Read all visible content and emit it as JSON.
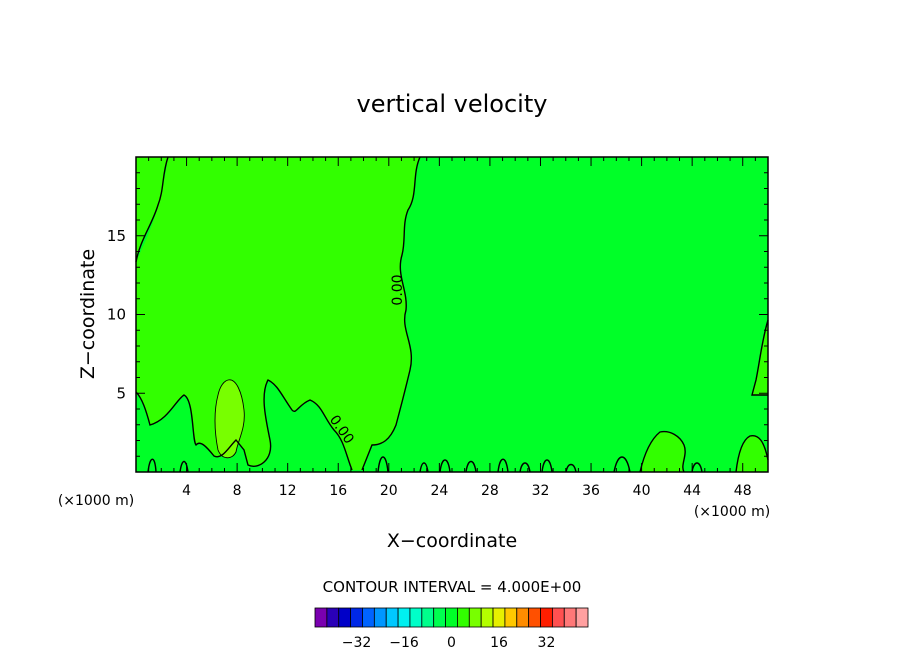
{
  "chart_data": {
    "type": "contour",
    "title": "vertical velocity",
    "xlabel": "X−coordinate",
    "ylabel": "Z−coordinate",
    "x_unit": "(×1000 m)",
    "z_unit": "(×1000 m)",
    "xlim": [
      0,
      50
    ],
    "ylim": [
      0,
      20
    ],
    "x_ticks": [
      "4",
      "8",
      "12",
      "16",
      "20",
      "24",
      "28",
      "32",
      "36",
      "40",
      "44",
      "48"
    ],
    "y_ticks": [
      "5",
      "10",
      "15"
    ],
    "contour_labels": [
      "0.00",
      "0.00"
    ],
    "contour_interval_text": "CONTOUR INTERVAL = 4.000E+00",
    "colorbar_ticks": [
      "−32",
      "−16",
      "0",
      "16",
      "32"
    ],
    "colorbar_colors": [
      "#7a00b0",
      "#2a00b8",
      "#0000c8",
      "#0028e6",
      "#0064ff",
      "#0096ff",
      "#00c8ff",
      "#00f0f0",
      "#00ffc8",
      "#00ff8c",
      "#00ff50",
      "#00ff28",
      "#32ff00",
      "#78ff00",
      "#b4ff00",
      "#e6f000",
      "#ffc800",
      "#ff8c00",
      "#ff5000",
      "#ff1e00",
      "#ff5050",
      "#ff7878",
      "#ffa0a0"
    ],
    "field_colors": {
      "background": "#00ff28",
      "positive_region": "#32ff00",
      "max_region": "#78ff00"
    }
  }
}
